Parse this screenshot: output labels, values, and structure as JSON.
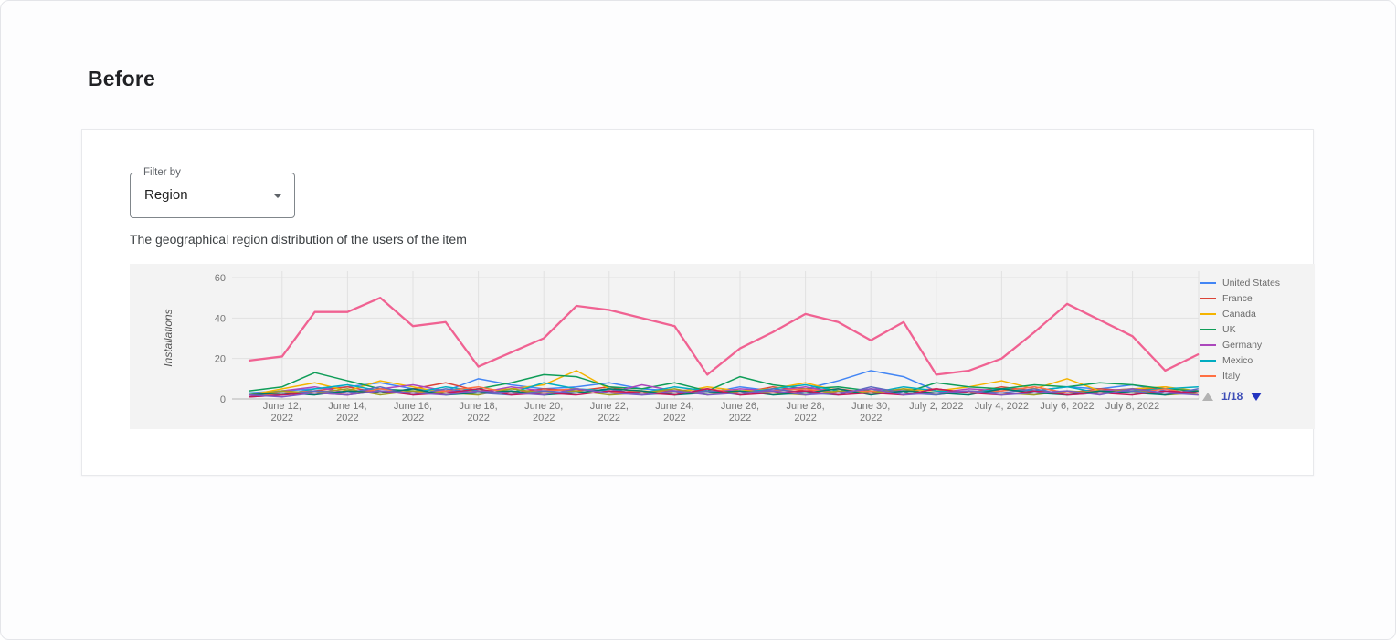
{
  "page": {
    "heading": "Before"
  },
  "filter": {
    "label": "Filter by",
    "value": "Region"
  },
  "card": {
    "description": "The geographical region distribution of the users of the item"
  },
  "legend_pager": {
    "page": "1/18"
  },
  "chart_data": {
    "type": "line",
    "title": "",
    "xlabel": "",
    "ylabel": "Installations",
    "ylim": [
      0,
      60
    ],
    "yticks": [
      0,
      20,
      40,
      60
    ],
    "grid": true,
    "legend_position": "right",
    "x": [
      "June 11, 2022",
      "June 12, 2022",
      "June 13, 2022",
      "June 14, 2022",
      "June 15, 2022",
      "June 16, 2022",
      "June 17, 2022",
      "June 18, 2022",
      "June 19, 2022",
      "June 20, 2022",
      "June 21, 2022",
      "June 22, 2022",
      "June 23, 2022",
      "June 24, 2022",
      "June 25, 2022",
      "June 26, 2022",
      "June 27, 2022",
      "June 28, 2022",
      "June 29, 2022",
      "June 30, 2022",
      "July 1, 2022",
      "July 2, 2022",
      "July 3, 2022",
      "July 4, 2022",
      "July 5, 2022",
      "July 6, 2022",
      "July 7, 2022",
      "July 8, 2022",
      "July 9, 2022",
      "July 10, 2022"
    ],
    "xticks": [
      {
        "i": 1,
        "lines": [
          "June 12,",
          "2022"
        ]
      },
      {
        "i": 3,
        "lines": [
          "June 14,",
          "2022"
        ]
      },
      {
        "i": 5,
        "lines": [
          "June 16,",
          "2022"
        ]
      },
      {
        "i": 7,
        "lines": [
          "June 18,",
          "2022"
        ]
      },
      {
        "i": 9,
        "lines": [
          "June 20,",
          "2022"
        ]
      },
      {
        "i": 11,
        "lines": [
          "June 22,",
          "2022"
        ]
      },
      {
        "i": 13,
        "lines": [
          "June 24,",
          "2022"
        ]
      },
      {
        "i": 15,
        "lines": [
          "June 26,",
          "2022"
        ]
      },
      {
        "i": 17,
        "lines": [
          "June 28,",
          "2022"
        ]
      },
      {
        "i": 19,
        "lines": [
          "June 30,",
          "2022"
        ]
      },
      {
        "i": 21,
        "lines": [
          "July 2, 2022"
        ]
      },
      {
        "i": 23,
        "lines": [
          "July 4, 2022"
        ]
      },
      {
        "i": 25,
        "lines": [
          "July 6, 2022"
        ]
      },
      {
        "i": 27,
        "lines": [
          "July 8, 2022"
        ]
      }
    ],
    "series": [
      {
        "label": "United States",
        "color": "#4285F4",
        "values": [
          3,
          4,
          5,
          6,
          8,
          5,
          4,
          10,
          7,
          5,
          6,
          8,
          5,
          4,
          3,
          6,
          4,
          5,
          9,
          14,
          11,
          4,
          3,
          5,
          4,
          6,
          5,
          7,
          4,
          3
        ]
      },
      {
        "label": "France",
        "color": "#DB4437",
        "values": [
          2,
          3,
          4,
          6,
          3,
          5,
          8,
          4,
          3,
          5,
          4,
          6,
          3,
          4,
          5,
          3,
          6,
          4,
          5,
          3,
          4,
          5,
          3,
          6,
          4,
          3,
          5,
          4,
          6,
          3
        ]
      },
      {
        "label": "Canada",
        "color": "#F4B400",
        "values": [
          2,
          5,
          8,
          4,
          9,
          6,
          3,
          4,
          5,
          7,
          14,
          5,
          4,
          3,
          6,
          4,
          5,
          8,
          4,
          3,
          5,
          4,
          6,
          9,
          5,
          10,
          4,
          5,
          6,
          4
        ]
      },
      {
        "label": "UK",
        "color": "#0F9D58",
        "values": [
          4,
          6,
          13,
          9,
          5,
          4,
          3,
          5,
          8,
          12,
          11,
          6,
          5,
          8,
          4,
          11,
          7,
          5,
          6,
          4,
          3,
          8,
          6,
          5,
          7,
          6,
          8,
          7,
          5,
          4
        ]
      },
      {
        "label": "Germany",
        "color": "#AB47BC",
        "values": [
          1,
          4,
          6,
          3,
          5,
          7,
          4,
          3,
          6,
          4,
          5,
          3,
          7,
          4,
          3,
          5,
          4,
          6,
          3,
          5,
          4,
          3,
          5,
          4,
          6,
          3,
          4,
          5,
          3,
          4
        ]
      },
      {
        "label": "Mexico",
        "color": "#00ACC1",
        "values": [
          3,
          2,
          5,
          7,
          4,
          3,
          6,
          4,
          3,
          8,
          5,
          4,
          3,
          6,
          4,
          3,
          5,
          7,
          4,
          3,
          6,
          4,
          3,
          5,
          4,
          6,
          3,
          4,
          5,
          6
        ]
      },
      {
        "label": "Italy",
        "color": "#FF7043",
        "values": [
          1,
          3,
          4,
          2,
          5,
          3,
          4,
          6,
          3,
          4,
          5,
          3,
          4,
          2,
          5,
          3,
          4,
          5,
          3,
          4,
          2,
          5,
          3,
          4,
          6,
          3,
          4,
          3,
          5,
          2
        ]
      },
      {
        "label": null,
        "color": "#9E9D24",
        "values": [
          2,
          4,
          3,
          5,
          2,
          4,
          3,
          2,
          5,
          3,
          4,
          2,
          3,
          5,
          2,
          4,
          3,
          2,
          4,
          3,
          5,
          2,
          4,
          3,
          2,
          4,
          3,
          5,
          2,
          3
        ]
      },
      {
        "label": null,
        "color": "#5C6BC0",
        "values": [
          1,
          2,
          4,
          3,
          6,
          2,
          5,
          3,
          2,
          4,
          3,
          5,
          2,
          3,
          4,
          2,
          5,
          3,
          2,
          6,
          3,
          2,
          4,
          3,
          5,
          2,
          3,
          4,
          2,
          5
        ]
      },
      {
        "label": null,
        "color": "#00796B",
        "values": [
          2,
          3,
          2,
          4,
          3,
          5,
          2,
          3,
          4,
          2,
          3,
          5,
          4,
          2,
          3,
          4,
          2,
          3,
          5,
          2,
          4,
          3,
          2,
          5,
          3,
          2,
          4,
          3,
          2,
          4
        ]
      },
      {
        "label": null,
        "color": "#C2185B",
        "values": [
          1,
          2,
          3,
          2,
          4,
          2,
          3,
          5,
          2,
          3,
          2,
          4,
          3,
          2,
          5,
          2,
          3,
          4,
          2,
          3,
          2,
          5,
          3,
          2,
          4,
          2,
          3,
          2,
          4,
          3
        ]
      },
      {
        "label": null,
        "color": "#7E57C2",
        "values": [
          2,
          1,
          3,
          2,
          4,
          3,
          2,
          4,
          3,
          2,
          5,
          3,
          2,
          4,
          2,
          3,
          4,
          2,
          3,
          5,
          2,
          3,
          4,
          2,
          3,
          4,
          2,
          5,
          3,
          2
        ]
      },
      {
        "label": null,
        "color": "#F06292",
        "width": 2.3,
        "values": [
          19,
          21,
          43,
          43,
          50,
          36,
          38,
          16,
          23,
          30,
          46,
          44,
          40,
          36,
          12,
          25,
          33,
          42,
          38,
          29,
          38,
          12,
          14,
          20,
          33,
          47,
          39,
          31,
          14,
          22
        ]
      }
    ]
  }
}
